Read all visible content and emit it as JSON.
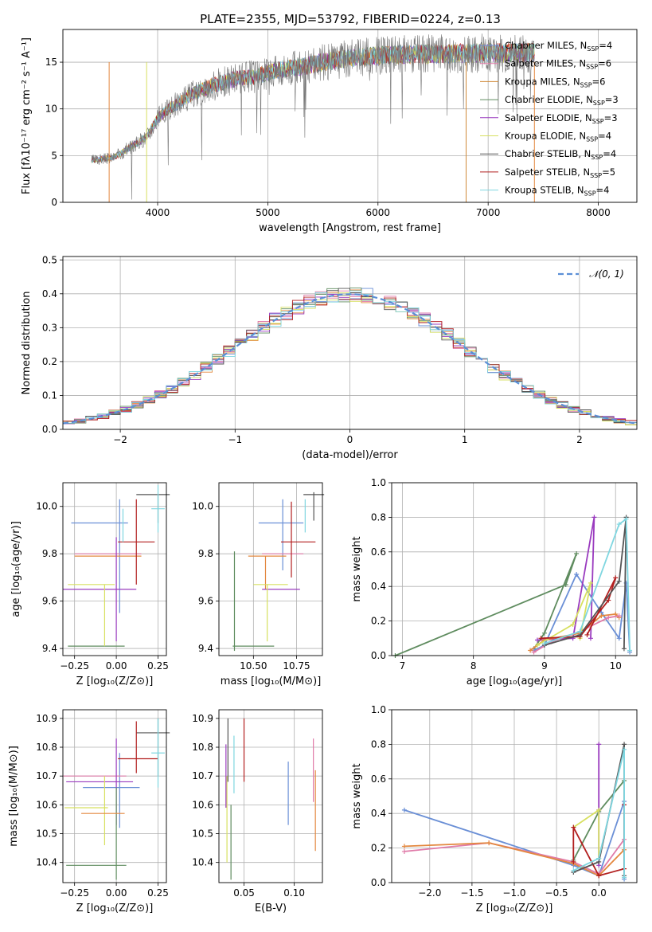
{
  "colors": {
    "Chabrier MILES": "#6a8fd6",
    "Salpeter MILES": "#e3883f",
    "Kroupa MILES": "#d08a3a",
    "Chabrier ELODIE": "#5f8c5f",
    "Salpeter ELODIE": "#9a3bbf",
    "Kroupa ELODIE": "#d7e060",
    "Chabrier STELIB": "#555555",
    "Salpeter STELIB": "#b21f1f",
    "Kroupa STELIB": "#7fd6e0",
    "pink": "#e07aa8",
    "grid": "#b0b0b0",
    "fit_line": "#5b8fd6"
  },
  "chart_data": [
    {
      "id": "spectrum",
      "type": "line",
      "title": "PLATE=2355, MJD=53792, FIBERID=0224, z=0.13",
      "xlabel": "wavelength [Angstrom, rest frame]",
      "ylabel": "Flux [fλ10⁻¹⁷ erg cm⁻² s⁻¹ A⁻¹]",
      "xlim": [
        3140,
        8350
      ],
      "ylim": [
        0,
        18.5
      ],
      "xticks": [
        4000,
        5000,
        6000,
        7000,
        8000
      ],
      "yticks": [
        0,
        5,
        10,
        15
      ],
      "continuum": {
        "x": [
          3400,
          3600,
          3700,
          3900,
          4000,
          4100,
          4300,
          4500,
          4700,
          4900,
          5100,
          5300,
          5500,
          5800,
          6200,
          6600,
          7000,
          7400
        ],
        "y": [
          4.5,
          4.8,
          5.5,
          7.0,
          9.0,
          10.0,
          11.5,
          12.5,
          13.2,
          13.5,
          14.2,
          14.5,
          15.0,
          15.5,
          15.8,
          15.9,
          16.0,
          16.0
        ]
      },
      "legend": [
        {
          "label": "Chabrier MILES, N",
          "sub": "SSP",
          "tail": "=4",
          "color": "#6a8fd6"
        },
        {
          "label": "Salpeter MILES, N",
          "sub": "SSP",
          "tail": "=6",
          "color": "#e07aa8"
        },
        {
          "label": "Kroupa MILES, N",
          "sub": "SSP",
          "tail": "=6",
          "color": "#d08a3a"
        },
        {
          "label": "Chabrier ELODIE, N",
          "sub": "SSP",
          "tail": "=3",
          "color": "#5f8c5f"
        },
        {
          "label": "Salpeter ELODIE, N",
          "sub": "SSP",
          "tail": "=3",
          "color": "#9a3bbf"
        },
        {
          "label": "Kroupa ELODIE, N",
          "sub": "SSP",
          "tail": "=4",
          "color": "#d7e060"
        },
        {
          "label": "Chabrier STELIB, N",
          "sub": "SSP",
          "tail": "=4",
          "color": "#555555"
        },
        {
          "label": "Salpeter STELIB, N",
          "sub": "SSP",
          "tail": "=5",
          "color": "#b21f1f"
        },
        {
          "label": "Kroupa STELIB, N",
          "sub": "SSP",
          "tail": "=4",
          "color": "#7fd6e0"
        }
      ]
    },
    {
      "id": "residuals",
      "type": "histogram",
      "xlabel": "(data-model)/error",
      "ylabel": "Normed distribution",
      "xlim": [
        -2.5,
        2.5
      ],
      "ylim": [
        0,
        0.51
      ],
      "xticks": [
        -2,
        -1,
        0,
        1,
        2
      ],
      "yticks": [
        0.0,
        0.1,
        0.2,
        0.3,
        0.4,
        0.5
      ],
      "bin_width": 0.1,
      "legend": "𝒩(0, 1)"
    },
    {
      "id": "age_vs_Z",
      "type": "errorbar",
      "xlabel": "Z [log₁₀(Z/Z⊙)]",
      "ylabel": "age  [log₁₀(age/yr)]",
      "xlim": [
        -0.32,
        0.3
      ],
      "ylim": [
        9.37,
        10.1
      ],
      "xticks": [
        -0.25,
        0.0,
        0.25
      ],
      "yticks": [
        9.4,
        9.6,
        9.8,
        10.0
      ],
      "points": [
        {
          "x": -0.1,
          "xe": 0.17,
          "y": 9.93,
          "ye": 0.0,
          "color": "#6a8fd6"
        },
        {
          "x": 0.02,
          "xe": 0.0,
          "y": 9.79,
          "ye": 0.24,
          "color": "#6a8fd6"
        },
        {
          "x": -0.05,
          "xe": 0.2,
          "y": 9.8,
          "ye": 0.0,
          "color": "#e07aa8"
        },
        {
          "x": -0.05,
          "xe": 0.2,
          "y": 9.79,
          "ye": 0.0,
          "color": "#e3883f"
        },
        {
          "x": -0.12,
          "xe": 0.17,
          "y": 9.41,
          "ye": 0.0,
          "color": "#5f8c5f"
        },
        {
          "x": 0.0,
          "xe": 0.0,
          "y": 9.65,
          "ye": 0.22,
          "color": "#9a3bbf"
        },
        {
          "x": -0.1,
          "xe": 0.22,
          "y": 9.65,
          "ye": 0.0,
          "color": "#9a3bbf"
        },
        {
          "x": -0.15,
          "xe": 0.14,
          "y": 9.67,
          "ye": 0.0,
          "color": "#d7e060"
        },
        {
          "x": -0.07,
          "xe": 0.0,
          "y": 9.54,
          "ye": 0.13,
          "color": "#d7e060"
        },
        {
          "x": 0.22,
          "xe": 0.1,
          "y": 10.05,
          "ye": 0.0,
          "color": "#555555"
        },
        {
          "x": 0.25,
          "xe": 0.0,
          "y": 9.99,
          "ye": 0.06,
          "color": "#555555"
        },
        {
          "x": 0.12,
          "xe": 0.11,
          "y": 9.85,
          "ye": 0.18,
          "color": "#b21f1f"
        },
        {
          "x": 0.25,
          "xe": 0.04,
          "y": 9.99,
          "ye": 0.1,
          "color": "#7fd6e0"
        },
        {
          "x": 0.04,
          "xe": 0.0,
          "y": 9.92,
          "ye": 0.07,
          "color": "#7fd6e0"
        }
      ]
    },
    {
      "id": "age_vs_mass",
      "type": "errorbar",
      "xlabel": "mass [log₁₀(M/M⊙)]",
      "ylabel": "",
      "xlim": [
        10.3,
        10.9
      ],
      "ylim": [
        9.37,
        10.1
      ],
      "xticks": [
        10.5,
        10.75
      ],
      "yticks": [
        9.4,
        9.6,
        9.8,
        10.0
      ],
      "points": [
        {
          "x": 10.66,
          "xe": 0.13,
          "y": 9.93,
          "ye": 0.0,
          "color": "#6a8fd6"
        },
        {
          "x": 10.67,
          "xe": 0.0,
          "y": 9.88,
          "ye": 0.15,
          "color": "#6a8fd6"
        },
        {
          "x": 10.67,
          "xe": 0.12,
          "y": 9.8,
          "ye": 0.0,
          "color": "#e07aa8"
        },
        {
          "x": 10.58,
          "xe": 0.11,
          "y": 9.79,
          "ye": 0.0,
          "color": "#e3883f"
        },
        {
          "x": 10.57,
          "xe": 0.0,
          "y": 9.72,
          "ye": 0.07,
          "color": "#e3883f"
        },
        {
          "x": 10.5,
          "xe": 0.12,
          "y": 9.41,
          "ye": 0.0,
          "color": "#5f8c5f"
        },
        {
          "x": 10.39,
          "xe": 0.0,
          "y": 9.6,
          "ye": 0.21,
          "color": "#5f8c5f"
        },
        {
          "x": 10.66,
          "xe": 0.11,
          "y": 9.65,
          "ye": 0.0,
          "color": "#9a3bbf"
        },
        {
          "x": 10.6,
          "xe": 0.1,
          "y": 9.67,
          "ye": 0.0,
          "color": "#d7e060"
        },
        {
          "x": 10.58,
          "xe": 0.0,
          "y": 9.55,
          "ye": 0.12,
          "color": "#d7e060"
        },
        {
          "x": 10.85,
          "xe": 0.06,
          "y": 10.05,
          "ye": 0.0,
          "color": "#555555"
        },
        {
          "x": 10.85,
          "xe": 0.0,
          "y": 10.0,
          "ye": 0.06,
          "color": "#555555"
        },
        {
          "x": 10.76,
          "xe": 0.1,
          "y": 9.85,
          "ye": 0.0,
          "color": "#b21f1f"
        },
        {
          "x": 10.72,
          "xe": 0.0,
          "y": 9.86,
          "ye": 0.16,
          "color": "#b21f1f"
        },
        {
          "x": 10.8,
          "xe": 0.0,
          "y": 9.96,
          "ye": 0.07,
          "color": "#7fd6e0"
        }
      ]
    },
    {
      "id": "weight_vs_age",
      "type": "line",
      "xlabel": "age  [log₁₀(age/yr)]",
      "ylabel": "mass weight",
      "xlim": [
        6.85,
        10.3
      ],
      "ylim": [
        0,
        1.0
      ],
      "xticks": [
        7,
        8,
        9,
        10
      ],
      "yticks": [
        0.0,
        0.2,
        0.4,
        0.6,
        0.8,
        1.0
      ],
      "series": [
        {
          "color": "#5f8c5f",
          "x": [
            6.9,
            9.3,
            9.45,
            9.0,
            8.85
          ],
          "y": [
            0.0,
            0.41,
            0.59,
            0.13,
            0.04
          ]
        },
        {
          "color": "#6a8fd6",
          "x": [
            8.85,
            9.0,
            9.45,
            9.8,
            10.05,
            10.15,
            10.2
          ],
          "y": [
            0.03,
            0.06,
            0.47,
            0.25,
            0.1,
            0.42,
            0.02
          ]
        },
        {
          "color": "#9a3bbf",
          "x": [
            8.9,
            9.4,
            9.7,
            9.65
          ],
          "y": [
            0.09,
            0.1,
            0.8,
            0.1
          ]
        },
        {
          "color": "#e3883f",
          "x": [
            8.8,
            9.0,
            9.5,
            9.8,
            10.0,
            10.05
          ],
          "y": [
            0.03,
            0.09,
            0.13,
            0.23,
            0.24,
            0.22
          ]
        },
        {
          "color": "#e07aa8",
          "x": [
            8.85,
            9.1,
            9.5,
            9.9,
            10.05
          ],
          "y": [
            0.02,
            0.08,
            0.14,
            0.22,
            0.23
          ]
        },
        {
          "color": "#d7e060",
          "x": [
            8.9,
            9.4,
            9.65,
            9.5
          ],
          "y": [
            0.06,
            0.18,
            0.42,
            0.1
          ]
        },
        {
          "color": "#b21f1f",
          "x": [
            8.95,
            9.5,
            9.9,
            10.0,
            9.6
          ],
          "y": [
            0.1,
            0.11,
            0.32,
            0.45,
            0.12
          ]
        },
        {
          "color": "#555555",
          "x": [
            9.0,
            9.5,
            10.05,
            10.15,
            10.12
          ],
          "y": [
            0.06,
            0.12,
            0.43,
            0.8,
            0.04
          ]
        },
        {
          "color": "#7fd6e0",
          "x": [
            9.0,
            9.5,
            10.05,
            10.15,
            10.2
          ],
          "y": [
            0.07,
            0.14,
            0.76,
            0.79,
            0.03
          ]
        }
      ]
    },
    {
      "id": "mass_vs_Z",
      "type": "errorbar",
      "xlabel": "Z [log₁₀(Z/Z⊙)]",
      "ylabel": "mass [log₁₀(M/M⊙)]",
      "xlim": [
        -0.32,
        0.3
      ],
      "ylim": [
        10.33,
        10.93
      ],
      "xticks": [
        -0.25,
        0.0,
        0.25
      ],
      "yticks": [
        10.4,
        10.5,
        10.6,
        10.7,
        10.8,
        10.9
      ],
      "points": [
        {
          "x": -0.03,
          "xe": 0.17,
          "y": 10.66,
          "ye": 0.0,
          "color": "#6a8fd6"
        },
        {
          "x": 0.02,
          "xe": 0.0,
          "y": 10.65,
          "ye": 0.13,
          "color": "#6a8fd6"
        },
        {
          "x": -0.13,
          "xe": 0.19,
          "y": 10.7,
          "ye": 0.0,
          "color": "#e07aa8"
        },
        {
          "x": -0.1,
          "xe": 0.2,
          "y": 10.68,
          "ye": 0.0,
          "color": "#9a3bbf"
        },
        {
          "x": 0.0,
          "xe": 0.0,
          "y": 10.68,
          "ye": 0.15,
          "color": "#9a3bbf"
        },
        {
          "x": -0.12,
          "xe": 0.18,
          "y": 10.39,
          "ye": 0.0,
          "color": "#5f8c5f"
        },
        {
          "x": 0.0,
          "xe": 0.0,
          "y": 10.5,
          "ye": 0.16,
          "color": "#5f8c5f"
        },
        {
          "x": -0.18,
          "xe": 0.13,
          "y": 10.59,
          "ye": 0.0,
          "color": "#d7e060"
        },
        {
          "x": -0.07,
          "xe": 0.0,
          "y": 10.58,
          "ye": 0.12,
          "color": "#d7e060"
        },
        {
          "x": -0.08,
          "xe": 0.13,
          "y": 10.57,
          "ye": 0.0,
          "color": "#e3883f"
        },
        {
          "x": 0.22,
          "xe": 0.1,
          "y": 10.85,
          "ye": 0.0,
          "color": "#555555"
        },
        {
          "x": 0.25,
          "xe": 0.0,
          "y": 10.8,
          "ye": 0.1,
          "color": "#555555"
        },
        {
          "x": 0.13,
          "xe": 0.12,
          "y": 10.76,
          "ye": 0.0,
          "color": "#b21f1f"
        },
        {
          "x": 0.12,
          "xe": 0.0,
          "y": 10.8,
          "ye": 0.09,
          "color": "#b21f1f"
        },
        {
          "x": 0.25,
          "xe": 0.04,
          "y": 10.78,
          "ye": 0.12,
          "color": "#7fd6e0"
        }
      ]
    },
    {
      "id": "mass_vs_ebv",
      "type": "errorbar",
      "xlabel": "E(B-V)",
      "ylabel": "",
      "xlim": [
        0.025,
        0.128
      ],
      "ylim": [
        10.33,
        10.93
      ],
      "xticks": [
        0.05,
        0.1
      ],
      "yticks": [
        10.4,
        10.5,
        10.6,
        10.7,
        10.8,
        10.9
      ],
      "points": [
        {
          "x": 0.094,
          "xe": 0.0,
          "y": 10.64,
          "ye": 0.11,
          "color": "#6a8fd6"
        },
        {
          "x": 0.121,
          "xe": 0.0,
          "y": 10.58,
          "ye": 0.14,
          "color": "#e3883f"
        },
        {
          "x": 0.119,
          "xe": 0.0,
          "y": 10.72,
          "ye": 0.11,
          "color": "#e07aa8"
        },
        {
          "x": 0.037,
          "xe": 0.0,
          "y": 10.47,
          "ye": 0.13,
          "color": "#5f8c5f"
        },
        {
          "x": 0.032,
          "xe": 0.0,
          "y": 10.7,
          "ye": 0.11,
          "color": "#9a3bbf"
        },
        {
          "x": 0.033,
          "xe": 0.0,
          "y": 10.55,
          "ye": 0.15,
          "color": "#d7e060"
        },
        {
          "x": 0.034,
          "xe": 0.0,
          "y": 10.79,
          "ye": 0.11,
          "color": "#555555"
        },
        {
          "x": 0.05,
          "xe": 0.0,
          "y": 10.79,
          "ye": 0.11,
          "color": "#b21f1f"
        },
        {
          "x": 0.04,
          "xe": 0.0,
          "y": 10.74,
          "ye": 0.1,
          "color": "#7fd6e0"
        }
      ]
    },
    {
      "id": "weight_vs_Z",
      "type": "line",
      "xlabel": "Z [log₁₀(Z/Z⊙)]",
      "ylabel": "mass weight",
      "xlim": [
        -2.45,
        0.45
      ],
      "ylim": [
        0,
        1.0
      ],
      "xticks": [
        -2.0,
        -1.5,
        -1.0,
        -0.5,
        0.0
      ],
      "yticks": [
        0.0,
        0.2,
        0.4,
        0.6,
        0.8,
        1.0
      ],
      "series": [
        {
          "color": "#6a8fd6",
          "x": [
            -2.3,
            -0.3,
            0.0,
            0.3,
            0.3
          ],
          "y": [
            0.42,
            0.1,
            0.04,
            0.47,
            0.02
          ]
        },
        {
          "color": "#e07aa8",
          "x": [
            -2.3,
            -1.3,
            -0.3,
            0.0,
            0.3
          ],
          "y": [
            0.18,
            0.23,
            0.12,
            0.05,
            0.25
          ]
        },
        {
          "color": "#e3883f",
          "x": [
            -2.3,
            -1.3,
            -0.3,
            0.0,
            0.3
          ],
          "y": [
            0.21,
            0.23,
            0.11,
            0.04,
            0.19
          ]
        },
        {
          "color": "#5f8c5f",
          "x": [
            -0.3,
            0.0,
            0.3
          ],
          "y": [
            0.13,
            0.41,
            0.59
          ]
        },
        {
          "color": "#9a3bbf",
          "x": [
            0.0,
            0.0,
            0.0
          ],
          "y": [
            0.1,
            0.8,
            0.42
          ]
        },
        {
          "color": "#d7e060",
          "x": [
            -0.3,
            0.0,
            0.0
          ],
          "y": [
            0.32,
            0.42,
            0.14
          ]
        },
        {
          "color": "#b21f1f",
          "x": [
            -0.3,
            -0.3,
            0.0,
            0.3,
            0.3
          ],
          "y": [
            0.12,
            0.32,
            0.04,
            0.08,
            0.45
          ]
        },
        {
          "color": "#555555",
          "x": [
            -0.3,
            0.0,
            0.3,
            0.3
          ],
          "y": [
            0.06,
            0.12,
            0.8,
            0.04
          ]
        },
        {
          "color": "#7fd6e0",
          "x": [
            -0.3,
            0.0,
            0.3,
            0.3
          ],
          "y": [
            0.07,
            0.14,
            0.77,
            0.03
          ]
        }
      ]
    }
  ]
}
